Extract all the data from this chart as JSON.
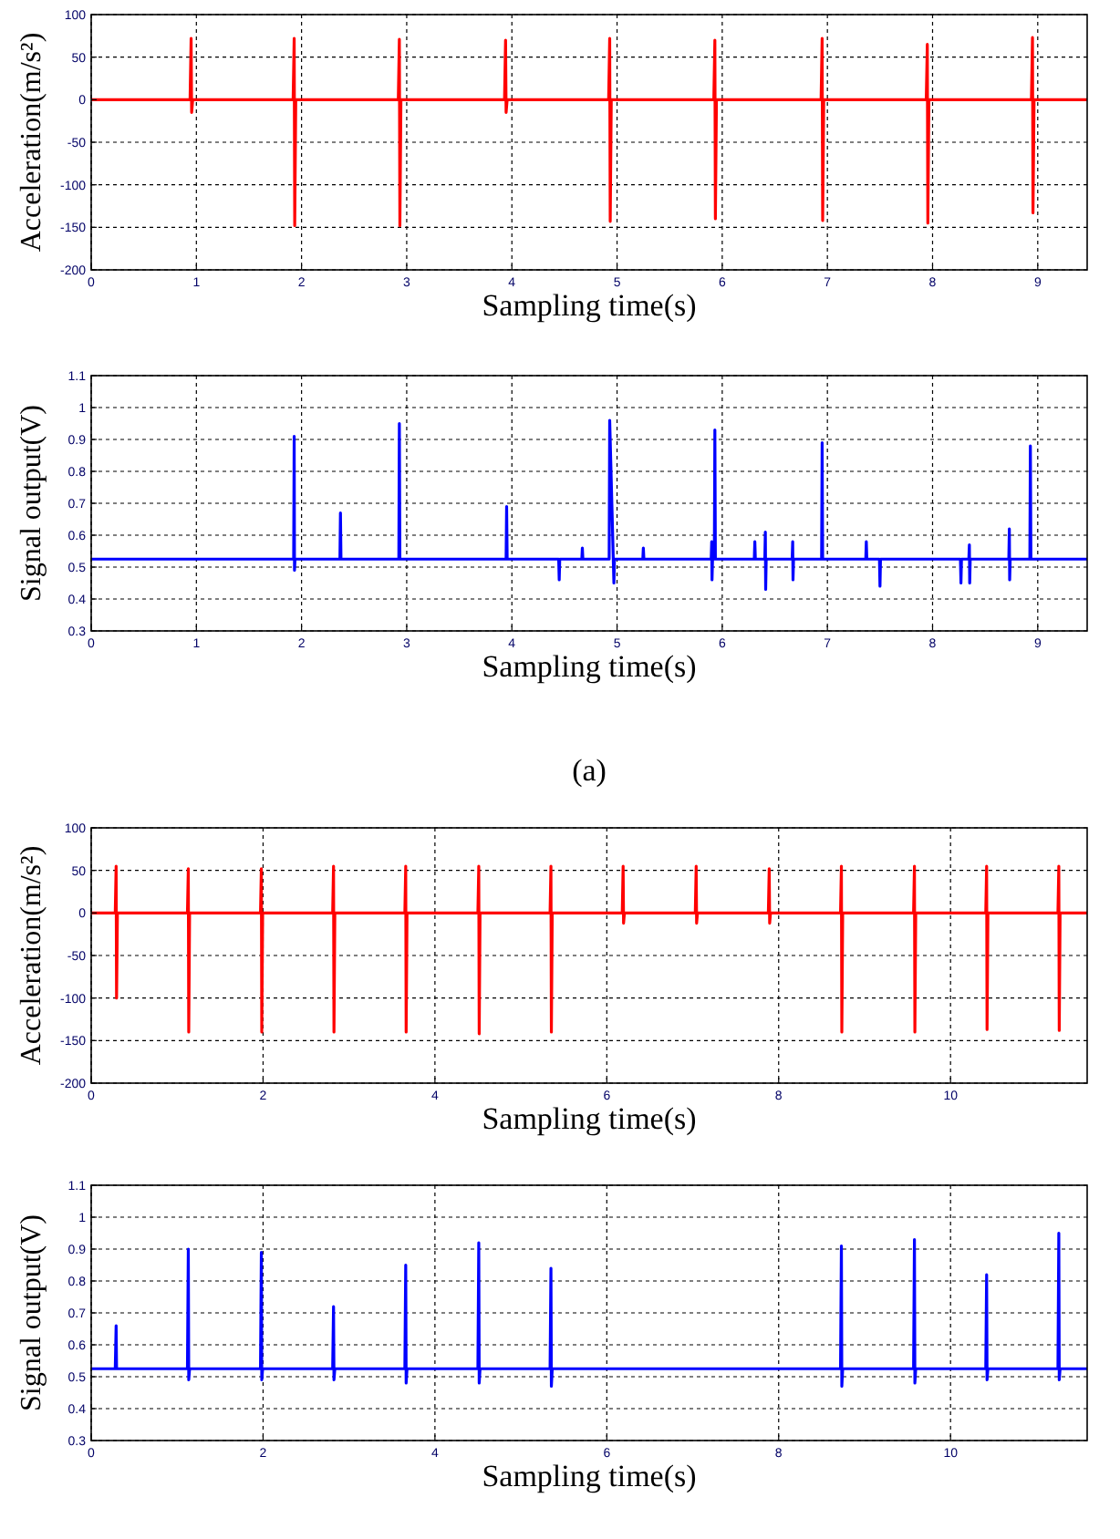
{
  "chart_data": [
    {
      "type": "line",
      "xlabel": "Sampling time(s)",
      "ylabel": "Acceleration(m/s²)",
      "xlim": [
        0,
        9.47
      ],
      "xticks": [
        0,
        1,
        2,
        3,
        4,
        5,
        6,
        7,
        8,
        9
      ],
      "ylim": [
        -200,
        100
      ],
      "yticks": [
        -200,
        -150,
        -100,
        -50,
        0,
        50,
        100
      ],
      "grid": true,
      "series": [
        {
          "color": "#ff0000",
          "x": [
            0,
            0.94,
            0.95,
            0.955,
            0.965,
            1.92,
            1.93,
            1.935,
            1.945,
            2.92,
            2.93,
            2.935,
            2.945,
            3.93,
            3.94,
            3.945,
            3.955,
            4.92,
            4.93,
            4.935,
            4.945,
            5.92,
            5.93,
            5.935,
            5.945,
            6.94,
            6.95,
            6.955,
            6.965,
            7.94,
            7.95,
            7.955,
            7.965,
            8.94,
            8.95,
            8.955,
            8.965,
            9.47
          ],
          "values": [
            0,
            0,
            72,
            -15,
            0,
            0,
            72,
            -148,
            0,
            0,
            71,
            -148,
            0,
            0,
            70,
            -15,
            0,
            0,
            72,
            -143,
            0,
            0,
            70,
            -140,
            0,
            0,
            72,
            -142,
            0,
            0,
            65,
            -145,
            0,
            0,
            73,
            -133,
            0,
            0
          ]
        }
      ]
    },
    {
      "type": "line",
      "xlabel": "Sampling time(s)",
      "ylabel": "Signal output(V)",
      "xlim": [
        0,
        9.47
      ],
      "xticks": [
        0,
        1,
        2,
        3,
        4,
        5,
        6,
        7,
        8,
        9
      ],
      "ylim": [
        0.3,
        1.1
      ],
      "yticks": [
        0.3,
        0.4,
        0.5,
        0.6,
        0.7,
        0.8,
        0.9,
        1,
        1.1
      ],
      "grid": true,
      "annotations": [
        "(a)"
      ],
      "series": [
        {
          "color": "#0000ff",
          "x": [
            0,
            1.925,
            1.93,
            1.933,
            1.938,
            2.365,
            2.37,
            2.375,
            2.925,
            2.93,
            2.935,
            3.945,
            3.95,
            3.955,
            4.445,
            4.45,
            4.455,
            4.665,
            4.67,
            4.675,
            4.925,
            4.93,
            4.97,
            4.975,
            5.245,
            5.25,
            5.255,
            5.895,
            5.9,
            5.903,
            5.908,
            5.925,
            5.93,
            5.935,
            6.305,
            6.31,
            6.315,
            6.405,
            6.41,
            6.413,
            6.418,
            6.665,
            6.67,
            6.673,
            6.678,
            6.945,
            6.95,
            6.955,
            7.365,
            7.37,
            7.375,
            7.495,
            7.5,
            7.505,
            8.265,
            8.27,
            8.275,
            8.345,
            8.35,
            8.353,
            8.358,
            8.725,
            8.73,
            8.733,
            8.738,
            8.925,
            8.93,
            8.935,
            9.47
          ],
          "values": [
            0.525,
            0.525,
            0.91,
            0.49,
            0.525,
            0.525,
            0.67,
            0.525,
            0.525,
            0.95,
            0.525,
            0.525,
            0.69,
            0.525,
            0.525,
            0.46,
            0.525,
            0.525,
            0.56,
            0.525,
            0.525,
            0.96,
            0.45,
            0.525,
            0.525,
            0.56,
            0.525,
            0.525,
            0.58,
            0.46,
            0.525,
            0.525,
            0.93,
            0.525,
            0.525,
            0.58,
            0.525,
            0.525,
            0.61,
            0.43,
            0.525,
            0.525,
            0.58,
            0.46,
            0.525,
            0.525,
            0.89,
            0.525,
            0.525,
            0.58,
            0.525,
            0.525,
            0.44,
            0.525,
            0.525,
            0.45,
            0.525,
            0.525,
            0.57,
            0.45,
            0.525,
            0.525,
            0.62,
            0.46,
            0.525,
            0.525,
            0.88,
            0.525,
            0.525
          ]
        }
      ]
    },
    {
      "type": "line",
      "xlabel": "Sampling time(s)",
      "ylabel": "Acceleration(m/s²)",
      "xlim": [
        0,
        11.59
      ],
      "xticks": [
        0,
        2,
        4,
        6,
        8,
        10
      ],
      "ylim": [
        -200,
        100
      ],
      "yticks": [
        -200,
        -150,
        -100,
        -50,
        0,
        50,
        100
      ],
      "grid": true,
      "series": [
        {
          "color": "#ff0000",
          "x": [
            0,
            0.28,
            0.29,
            0.295,
            0.305,
            1.12,
            1.13,
            1.135,
            1.145,
            1.97,
            1.98,
            1.985,
            1.995,
            2.81,
            2.82,
            2.825,
            2.835,
            3.65,
            3.66,
            3.665,
            3.675,
            4.5,
            4.51,
            4.515,
            4.525,
            5.34,
            5.35,
            5.355,
            5.365,
            6.18,
            6.19,
            6.195,
            6.205,
            7.03,
            7.04,
            7.045,
            7.055,
            7.88,
            7.89,
            7.895,
            7.905,
            8.72,
            8.73,
            8.735,
            8.745,
            9.57,
            9.58,
            9.585,
            9.595,
            10.41,
            10.42,
            10.425,
            10.435,
            11.25,
            11.26,
            11.265,
            11.275,
            11.59
          ],
          "values": [
            0,
            0,
            55,
            -100,
            0,
            0,
            52,
            -140,
            0,
            0,
            52,
            -140,
            0,
            0,
            55,
            -140,
            0,
            0,
            55,
            -140,
            0,
            0,
            55,
            -142,
            0,
            0,
            55,
            -140,
            0,
            0,
            55,
            -12,
            0,
            0,
            55,
            -12,
            0,
            0,
            52,
            -12,
            0,
            0,
            55,
            -140,
            0,
            0,
            55,
            -140,
            0,
            0,
            55,
            -137,
            0,
            0,
            55,
            -138,
            0,
            0
          ]
        }
      ]
    },
    {
      "type": "line",
      "xlabel": "Sampling time(s)",
      "ylabel": "Signal output(V)",
      "xlim": [
        0,
        11.59
      ],
      "xticks": [
        0,
        2,
        4,
        6,
        8,
        10
      ],
      "ylim": [
        0.3,
        1.1
      ],
      "yticks": [
        0.3,
        0.4,
        0.5,
        0.6,
        0.7,
        0.8,
        0.9,
        1,
        1.1
      ],
      "grid": true,
      "series": [
        {
          "color": "#0000ff",
          "x": [
            0,
            0.28,
            0.29,
            0.295,
            0.305,
            1.12,
            1.13,
            1.135,
            1.145,
            1.97,
            1.98,
            1.985,
            1.995,
            2.81,
            2.82,
            2.825,
            2.835,
            3.65,
            3.66,
            3.665,
            3.675,
            4.5,
            4.51,
            4.515,
            4.525,
            5.34,
            5.35,
            5.355,
            5.365,
            8.72,
            8.73,
            8.735,
            8.745,
            9.57,
            9.58,
            9.585,
            9.595,
            10.41,
            10.42,
            10.425,
            10.435,
            11.25,
            11.26,
            11.265,
            11.275,
            11.59
          ],
          "values": [
            0.525,
            0.525,
            0.66,
            0.525,
            0.525,
            0.525,
            0.9,
            0.49,
            0.525,
            0.525,
            0.89,
            0.49,
            0.525,
            0.525,
            0.72,
            0.49,
            0.525,
            0.525,
            0.85,
            0.48,
            0.525,
            0.525,
            0.92,
            0.48,
            0.525,
            0.525,
            0.84,
            0.47,
            0.525,
            0.525,
            0.91,
            0.47,
            0.525,
            0.525,
            0.93,
            0.48,
            0.525,
            0.525,
            0.82,
            0.49,
            0.525,
            0.525,
            0.95,
            0.49,
            0.525,
            0.525
          ]
        }
      ]
    }
  ]
}
